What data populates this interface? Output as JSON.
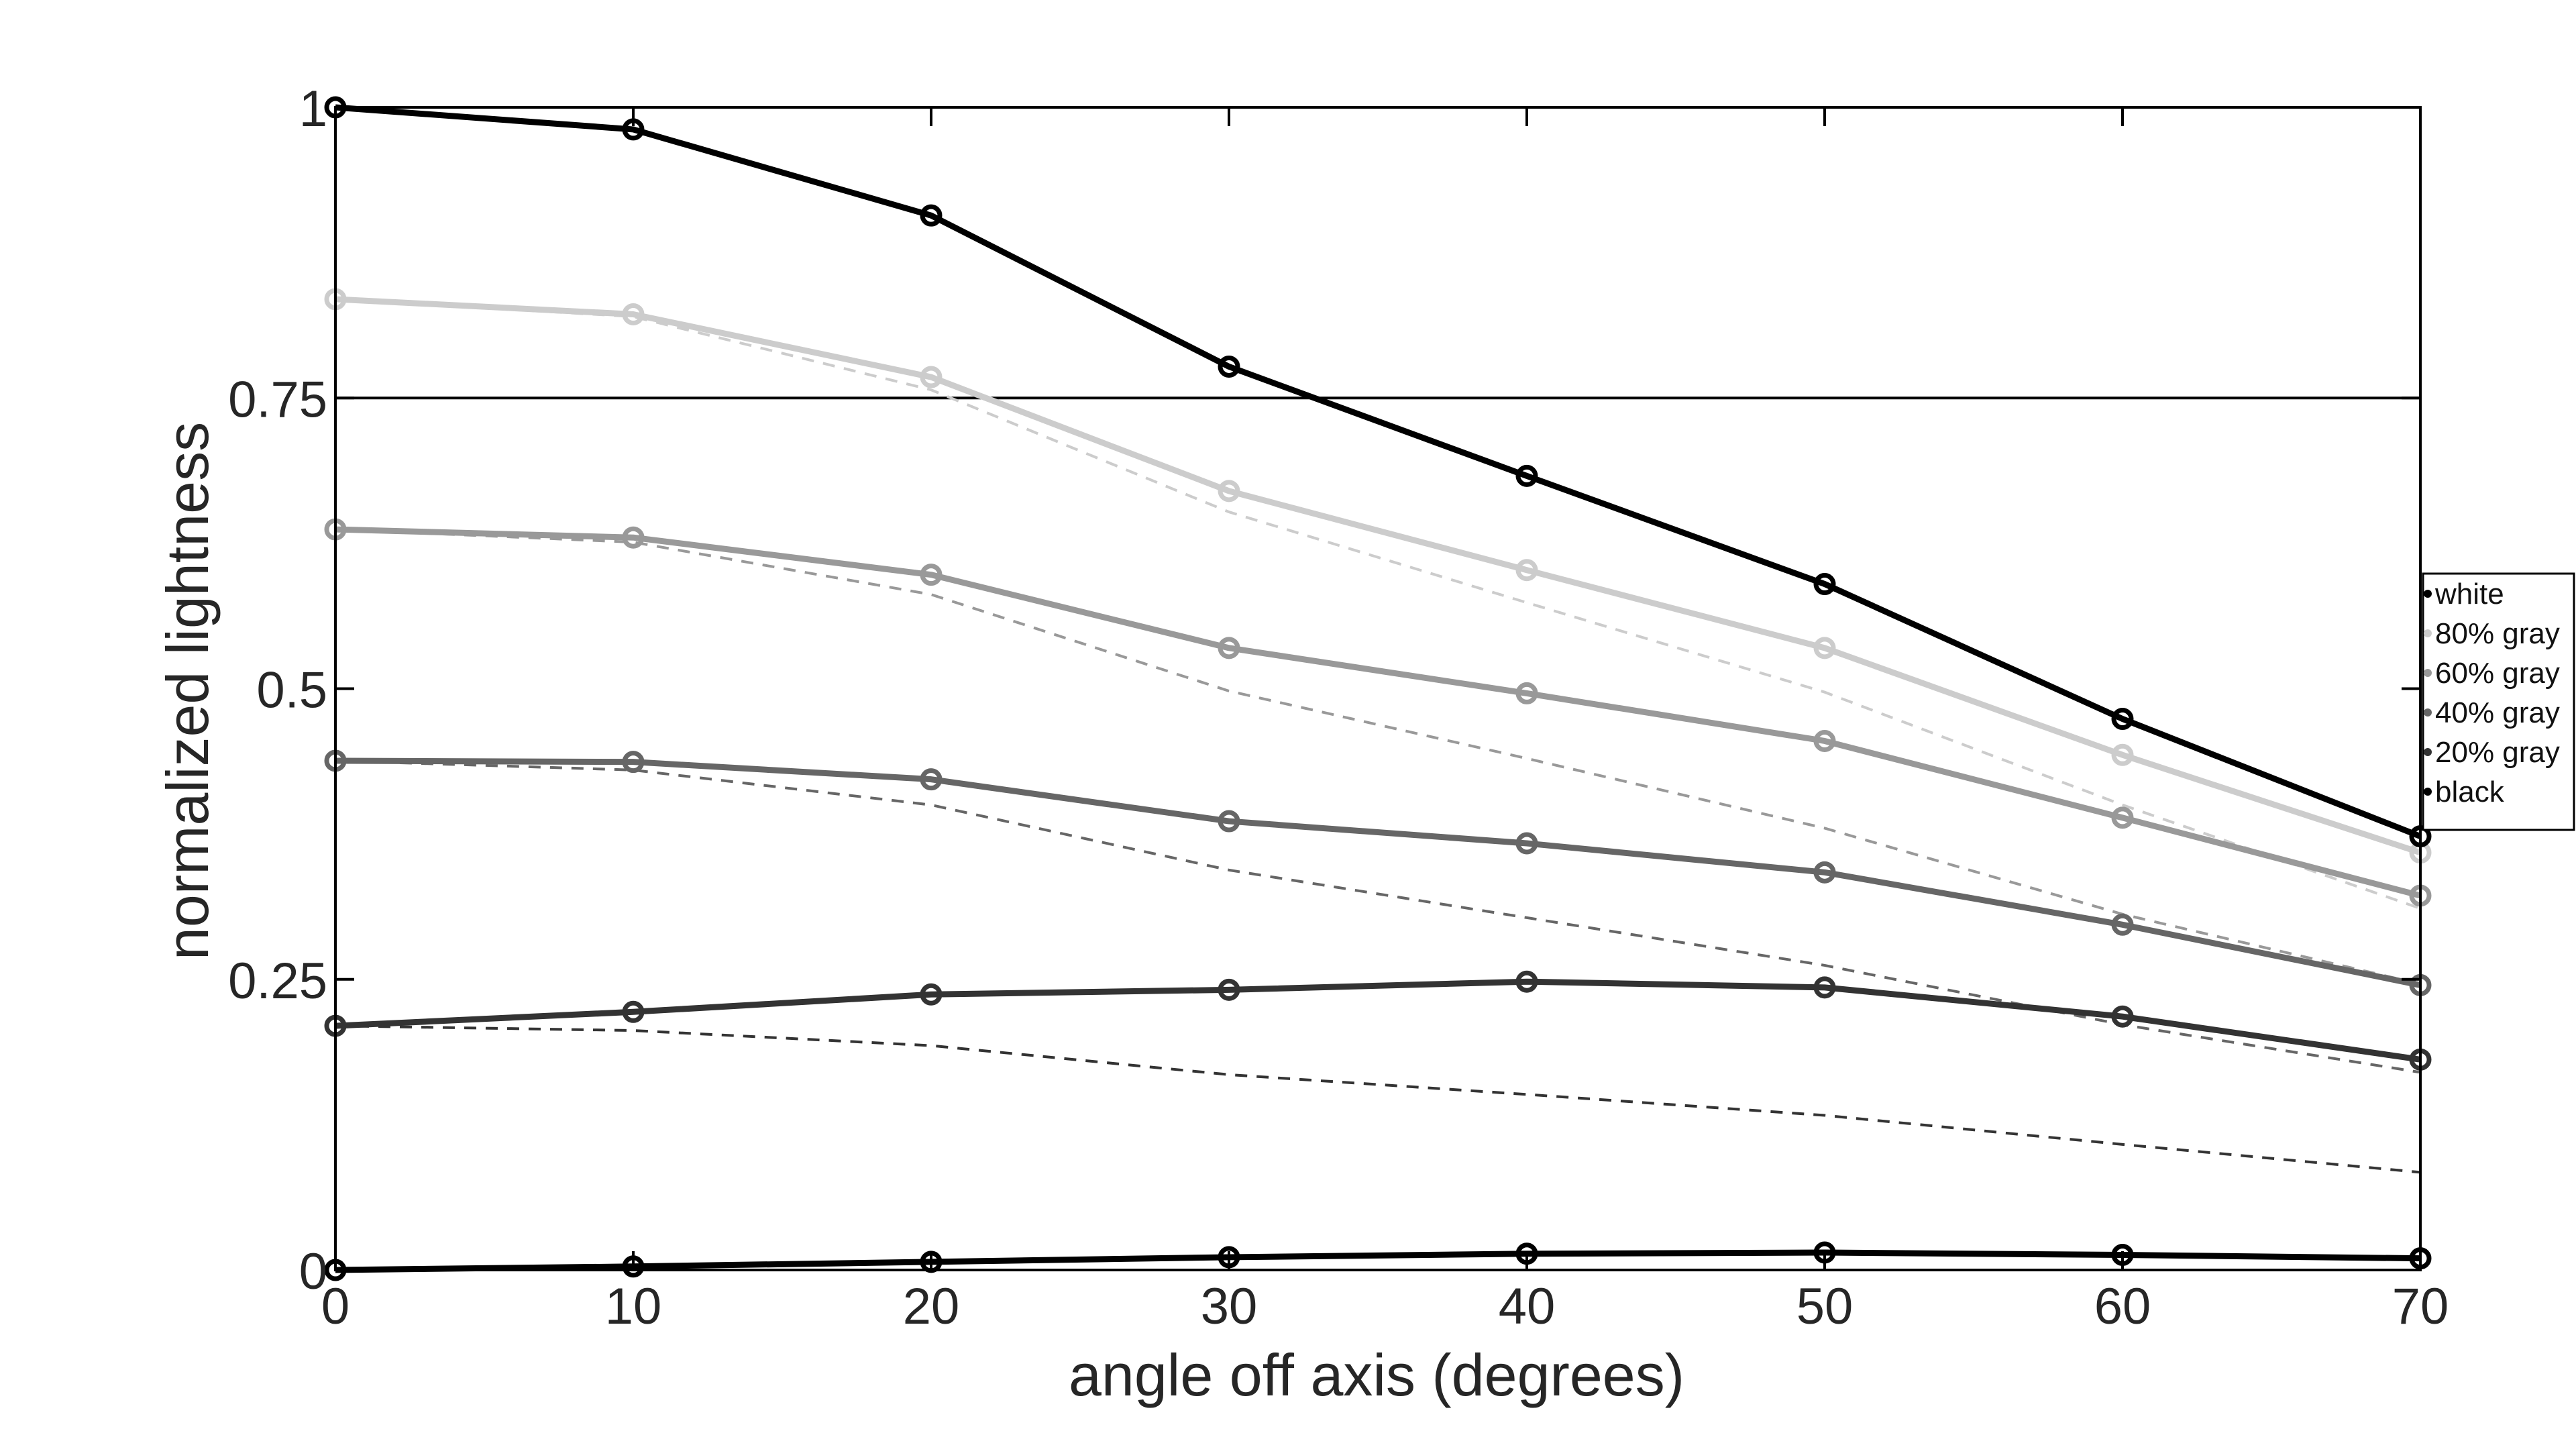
{
  "chart_data": {
    "type": "line",
    "title": "",
    "xlabel": "angle off axis (degrees)",
    "ylabel": "normalized lightness",
    "xlim": [
      0,
      70
    ],
    "ylim": [
      0,
      1
    ],
    "xticks": [
      0,
      10,
      20,
      30,
      40,
      50,
      60,
      70
    ],
    "xtick_labels": [
      "0",
      "10",
      "20",
      "30",
      "40",
      "50",
      "60",
      "70"
    ],
    "yticks": [
      0,
      0.25,
      0.5,
      0.75,
      1
    ],
    "ytick_labels": [
      "0",
      "0.25",
      "0.5",
      "0.75",
      "1"
    ],
    "grid": false,
    "reference_line": {
      "y": 0.75
    },
    "legend_position": "right",
    "x": [
      0,
      10,
      20,
      30,
      40,
      50,
      60,
      70
    ],
    "series": [
      {
        "name": "white",
        "color": "#000000",
        "values": [
          1.0,
          0.981,
          0.907,
          0.777,
          0.683,
          0.59,
          0.474,
          0.373
        ]
      },
      {
        "name": "80% gray",
        "color": "#cccccc",
        "values": [
          0.835,
          0.822,
          0.768,
          0.67,
          0.602,
          0.535,
          0.443,
          0.359
        ]
      },
      {
        "name": "60% gray",
        "color": "#999999",
        "values": [
          0.637,
          0.63,
          0.598,
          0.535,
          0.496,
          0.455,
          0.389,
          0.322
        ]
      },
      {
        "name": "40% gray",
        "color": "#666666",
        "values": [
          0.438,
          0.437,
          0.422,
          0.386,
          0.367,
          0.342,
          0.297,
          0.245
        ]
      },
      {
        "name": "20% gray",
        "color": "#333333",
        "values": [
          0.21,
          0.222,
          0.237,
          0.241,
          0.248,
          0.243,
          0.218,
          0.181
        ]
      },
      {
        "name": "black",
        "color": "#000000",
        "values": [
          0.0,
          0.003,
          0.007,
          0.011,
          0.014,
          0.015,
          0.013,
          0.01
        ]
      }
    ],
    "dashed_series": [
      {
        "color": "#cccccc",
        "values": [
          0.835,
          0.82,
          0.757,
          0.652,
          0.574,
          0.497,
          0.4,
          0.311
        ]
      },
      {
        "color": "#999999",
        "values": [
          0.637,
          0.626,
          0.581,
          0.498,
          0.44,
          0.38,
          0.306,
          0.246
        ]
      },
      {
        "color": "#666666",
        "values": [
          0.438,
          0.43,
          0.4,
          0.344,
          0.303,
          0.262,
          0.211,
          0.17
        ]
      },
      {
        "color": "#333333",
        "values": [
          0.21,
          0.206,
          0.193,
          0.168,
          0.151,
          0.133,
          0.108,
          0.084
        ]
      }
    ]
  }
}
